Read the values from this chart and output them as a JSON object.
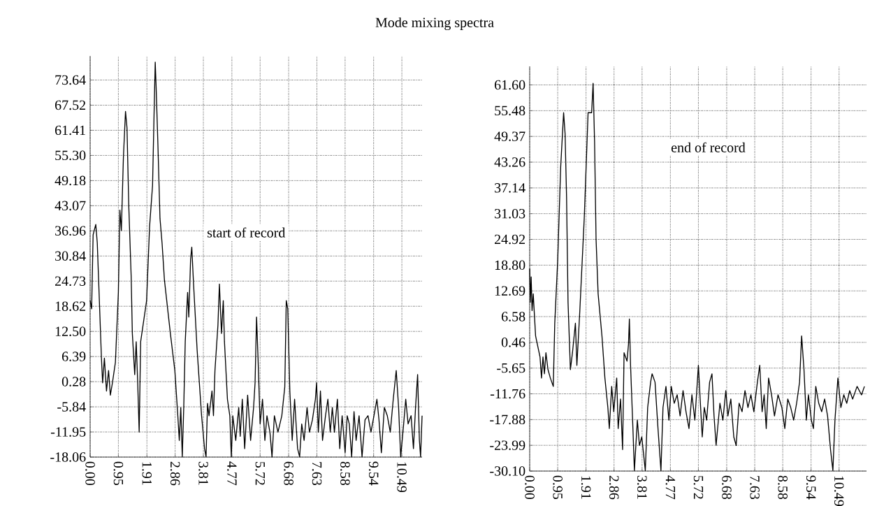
{
  "chart_data": [
    {
      "type": "line",
      "title": "Mode mixing spectra",
      "annotations": [
        "start of record"
      ],
      "x": [
        0,
        0.05,
        0.1,
        0.19,
        0.24,
        0.3,
        0.38,
        0.42,
        0.48,
        0.55,
        0.62,
        0.68,
        0.75,
        0.85,
        0.95,
        1.0,
        1.05,
        1.12,
        1.19,
        1.24,
        1.3,
        1.38,
        1.42,
        1.5,
        1.55,
        1.6,
        1.65,
        1.7,
        1.9,
        2.0,
        2.1,
        2.15,
        2.19,
        2.22,
        2.28,
        2.35,
        2.42,
        2.5,
        2.7,
        2.85,
        2.95,
        3.0,
        3.05,
        3.1,
        3.15,
        3.2,
        3.28,
        3.32,
        3.38,
        3.42,
        3.48,
        3.6,
        3.75,
        3.85,
        3.9,
        3.95,
        4.0,
        4.1,
        4.15,
        4.2,
        4.3,
        4.35,
        4.42,
        4.48,
        4.52,
        4.62,
        4.7,
        4.75,
        4.8,
        4.9,
        5.0,
        5.05,
        5.12,
        5.2,
        5.3,
        5.4,
        5.5,
        5.55,
        5.6,
        5.65,
        5.72,
        5.8,
        5.88,
        5.95,
        6.05,
        6.12,
        6.2,
        6.32,
        6.45,
        6.55,
        6.6,
        6.65,
        6.72,
        6.8,
        6.88,
        6.98,
        7.05,
        7.12,
        7.2,
        7.3,
        7.38,
        7.48,
        7.58,
        7.62,
        7.68,
        7.75,
        7.82,
        7.92,
        8.0,
        8.08,
        8.15,
        8.22,
        8.32,
        8.4,
        8.48,
        8.58,
        8.65,
        8.72,
        8.8,
        8.88,
        8.95,
        9.05,
        9.15,
        9.25,
        9.35,
        9.45,
        9.55,
        9.65,
        9.72,
        9.8,
        9.9,
        10.0,
        10.1,
        10.2,
        10.3,
        10.38,
        10.45,
        10.55,
        10.62,
        10.7,
        10.8,
        10.88,
        10.95,
        11.02,
        11.08,
        11.12,
        11.17
      ],
      "series": [
        {
          "color": "#000000",
          "values": [
            20,
            18,
            36,
            38.5,
            34,
            22,
            6,
            0,
            6,
            -2,
            3,
            -3,
            0,
            5,
            22,
            42,
            37,
            55,
            66,
            62,
            43,
            26,
            12,
            2,
            10,
            0,
            -12,
            10,
            20,
            38,
            48,
            65,
            78,
            72,
            58,
            40,
            34,
            25,
            12,
            3,
            -8,
            -14,
            -6,
            -18,
            -6,
            10,
            22,
            16,
            30,
            33,
            24,
            8,
            -8,
            -16,
            -18,
            -5,
            -8,
            -2,
            -8,
            3,
            14,
            24,
            12,
            20,
            10,
            -4,
            -8,
            -18,
            -8,
            -14,
            -6,
            -13,
            -4,
            -16,
            -3,
            -14,
            -6,
            0,
            16,
            6,
            -10,
            -4,
            -14,
            -8,
            -12,
            -18,
            -8,
            -12,
            -8,
            -1,
            20,
            18,
            -2,
            -14,
            -4,
            -16,
            -18,
            -10,
            -14,
            -6,
            -12,
            -9,
            -4,
            0,
            -12,
            -2,
            -14,
            -8,
            -4,
            -12,
            -6,
            -12,
            -4,
            -16,
            -8,
            -17,
            -8,
            -10,
            -18,
            -7,
            -14,
            -8,
            -18,
            -9,
            -8,
            -12,
            -8,
            -4,
            -9,
            -17,
            -6,
            -8,
            -12,
            -4,
            3,
            -6,
            -18,
            -10,
            -4,
            -10,
            -8,
            -16,
            -6,
            2,
            -14,
            -18,
            -8
          ]
        }
      ],
      "xlim": [
        0,
        11.17
      ],
      "ylim": [
        -18.06,
        79.5
      ],
      "xticks": [
        {
          "value": 0,
          "label": "0.00"
        },
        0.95,
        1.91,
        2.86,
        3.81,
        4.77,
        5.72,
        6.68,
        7.63,
        8.58,
        9.54,
        10.49
      ],
      "yticks": [
        -18.06,
        -11.95,
        -5.84,
        0.28,
        6.39,
        {
          "value": 12.5,
          "label": "12.50"
        },
        18.62,
        24.73,
        30.84,
        36.96,
        43.07,
        49.18,
        {
          "value": 55.3,
          "label": "55.30"
        },
        61.41,
        67.52,
        73.64
      ],
      "grid": true
    },
    {
      "type": "line",
      "annotations": [
        "end of record"
      ],
      "x": [
        0,
        0.02,
        0.05,
        0.08,
        0.12,
        0.2,
        0.35,
        0.4,
        0.45,
        0.5,
        0.55,
        0.62,
        0.7,
        0.8,
        0.85,
        0.95,
        1.05,
        1.15,
        1.2,
        1.25,
        1.3,
        1.38,
        1.45,
        1.55,
        1.6,
        1.7,
        1.85,
        1.98,
        2.1,
        2.15,
        2.2,
        2.25,
        2.32,
        2.45,
        2.55,
        2.65,
        2.7,
        2.78,
        2.85,
        2.95,
        3.0,
        3.08,
        3.15,
        3.2,
        3.3,
        3.35,
        3.38,
        3.42,
        3.5,
        3.55,
        3.65,
        3.72,
        3.8,
        3.92,
        4.0,
        4.1,
        4.15,
        4.25,
        4.35,
        4.45,
        4.52,
        4.62,
        4.72,
        4.8,
        4.9,
        5.0,
        5.1,
        5.2,
        5.3,
        5.4,
        5.5,
        5.6,
        5.72,
        5.78,
        5.85,
        5.92,
        6.0,
        6.1,
        6.18,
        6.25,
        6.32,
        6.45,
        6.55,
        6.65,
        6.72,
        6.82,
        6.92,
        7.0,
        7.1,
        7.2,
        7.3,
        7.4,
        7.5,
        7.6,
        7.72,
        7.8,
        7.88,
        7.95,
        8.02,
        8.1,
        8.2,
        8.3,
        8.42,
        8.55,
        8.65,
        8.75,
        8.85,
        8.95,
        9.05,
        9.15,
        9.22,
        9.3,
        9.38,
        9.45,
        9.55,
        9.62,
        9.7,
        9.8,
        9.9,
        10.0,
        10.1,
        10.2,
        10.28,
        10.35,
        10.45,
        10.55,
        10.65,
        10.75,
        10.85,
        10.95,
        11.1,
        11.25,
        11.35
      ],
      "series": [
        {
          "color": "#000000",
          "values": [
            18,
            10,
            16,
            8,
            12,
            2,
            -3,
            -8,
            -3,
            -7,
            -2,
            -6,
            -8,
            -10,
            5,
            20,
            42,
            55,
            50,
            35,
            10,
            -6,
            -2,
            5,
            -5,
            8,
            30,
            55,
            55,
            62,
            48,
            25,
            12,
            2,
            -8,
            -15,
            -20,
            -10,
            -16,
            -8,
            -20,
            -13,
            -25,
            -2,
            -4,
            0,
            6,
            -5,
            -20,
            -30,
            -18,
            -24,
            -22,
            -30,
            -15,
            -9,
            -7,
            -9,
            -20,
            -30,
            -15,
            -10,
            -18,
            -10,
            -14,
            -12,
            -17,
            -11,
            -16,
            -20,
            -12,
            -18,
            -5,
            -13,
            -22,
            -15,
            -18,
            -9,
            -7,
            -17,
            -24,
            -14,
            -18,
            -11,
            -17,
            -13,
            -22,
            -24,
            -14,
            -16,
            -11,
            -15,
            -12,
            -16,
            -9,
            -5,
            -16,
            -12,
            -20,
            -8,
            -12,
            -17,
            -12,
            -15,
            -20,
            -13,
            -15,
            -18,
            -14,
            -9,
            2,
            -6,
            -18,
            -12,
            -18,
            -20,
            -10,
            -14,
            -16,
            -13,
            -17,
            -25,
            -30,
            -18,
            -8,
            -15,
            -12,
            -14,
            -11,
            -13,
            -10,
            -12,
            -10
          ]
        }
      ],
      "xlim": [
        0,
        11.42
      ],
      "ylim": [
        -30.1,
        66
      ],
      "xticks": [
        {
          "value": 0,
          "label": "0.00"
        },
        0.95,
        1.91,
        2.86,
        3.81,
        4.77,
        5.72,
        6.68,
        7.63,
        8.58,
        9.54,
        10.49
      ],
      "yticks": [
        {
          "value": -30.1,
          "label": "-30.10"
        },
        -23.99,
        -17.88,
        -11.76,
        -5.65,
        0.46,
        6.58,
        12.69,
        {
          "value": 18.8,
          "label": "18.80"
        },
        24.92,
        31.03,
        37.14,
        43.26,
        49.37,
        55.48,
        {
          "value": 61.6,
          "label": "61.60"
        }
      ],
      "grid": true
    }
  ]
}
